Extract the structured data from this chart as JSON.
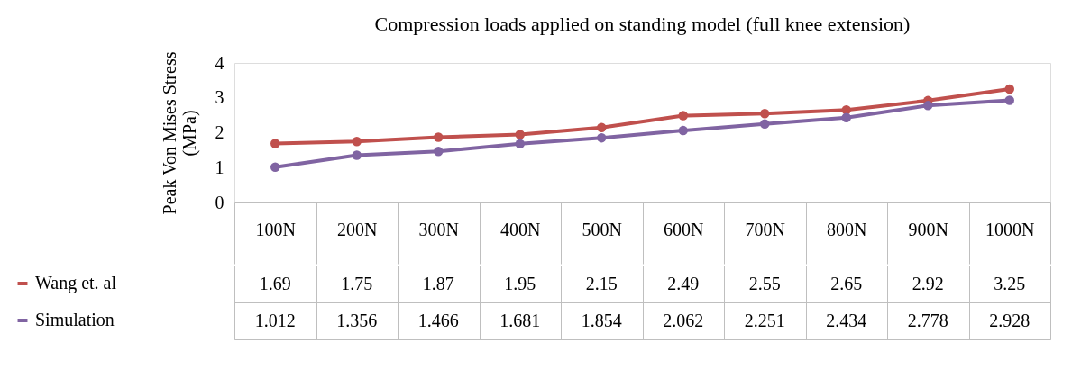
{
  "chart_data": {
    "type": "line",
    "title": "Compression loads applied on standing model (full knee extension)",
    "ylabel": "Peak Von Mises Stress (MPa)",
    "categories": [
      "100N",
      "200N",
      "300N",
      "400N",
      "500N",
      "600N",
      "700N",
      "800N",
      "900N",
      "1000N"
    ],
    "series": [
      {
        "name": "Wang et. al",
        "color": "#c0504d",
        "values": [
          1.69,
          1.75,
          1.87,
          1.95,
          2.15,
          2.49,
          2.55,
          2.65,
          2.92,
          3.25
        ]
      },
      {
        "name": "Simulation",
        "color": "#8064a2",
        "values": [
          1.012,
          1.356,
          1.466,
          1.681,
          1.854,
          2.062,
          2.251,
          2.434,
          2.778,
          2.928
        ]
      }
    ],
    "ylim": [
      0,
      4
    ],
    "yticks": [
      0,
      1,
      2,
      3,
      4
    ],
    "grid": false,
    "legend": "bottom left",
    "marker": "circle",
    "line_style": "solid",
    "data_labels": true
  }
}
